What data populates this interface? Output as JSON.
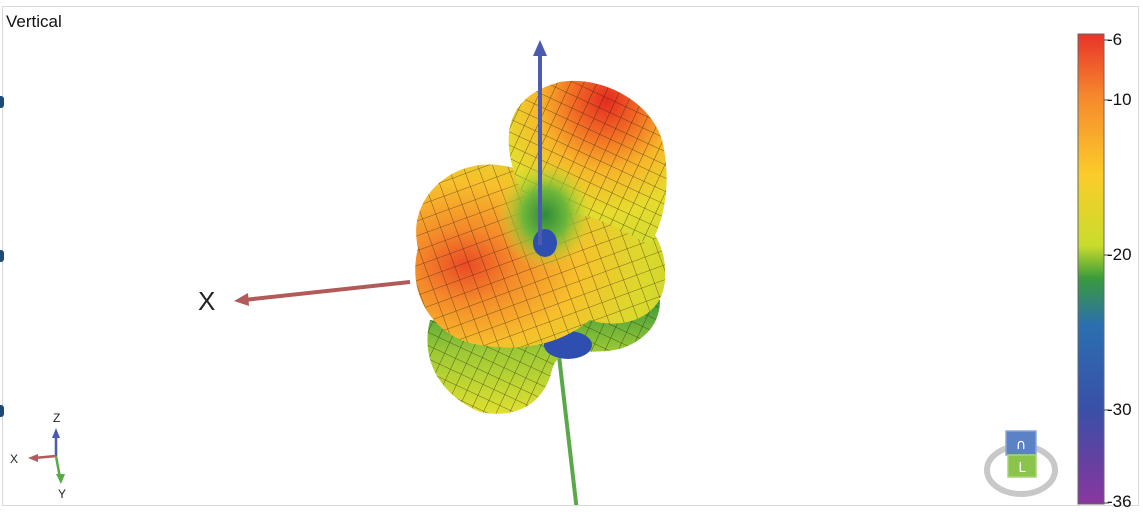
{
  "view": {
    "title": "Vertical"
  },
  "axes": {
    "x_label": "X"
  },
  "triad": {
    "x": "X",
    "y": "Y",
    "z": "Z"
  },
  "color_scale": {
    "ticks": [
      "-6",
      "-10",
      "-20",
      "-30",
      "-36"
    ],
    "values": [
      -6,
      -10,
      -20,
      -30,
      -36
    ],
    "range": [
      -36,
      -6
    ],
    "stops": [
      "#e8332a",
      "#f6872c",
      "#fbcc2b",
      "#c9dc2b",
      "#3a9a3c",
      "#2b6fb0",
      "#3a4fa8",
      "#6a3fa0",
      "#8a37a0"
    ]
  },
  "nav_cube": {
    "top_face": "∩",
    "front_face": "L"
  },
  "colors": {
    "x_axis": "#b25a5a",
    "z_axis": "#4a5bb0",
    "y_axis": "#5aa84a"
  }
}
